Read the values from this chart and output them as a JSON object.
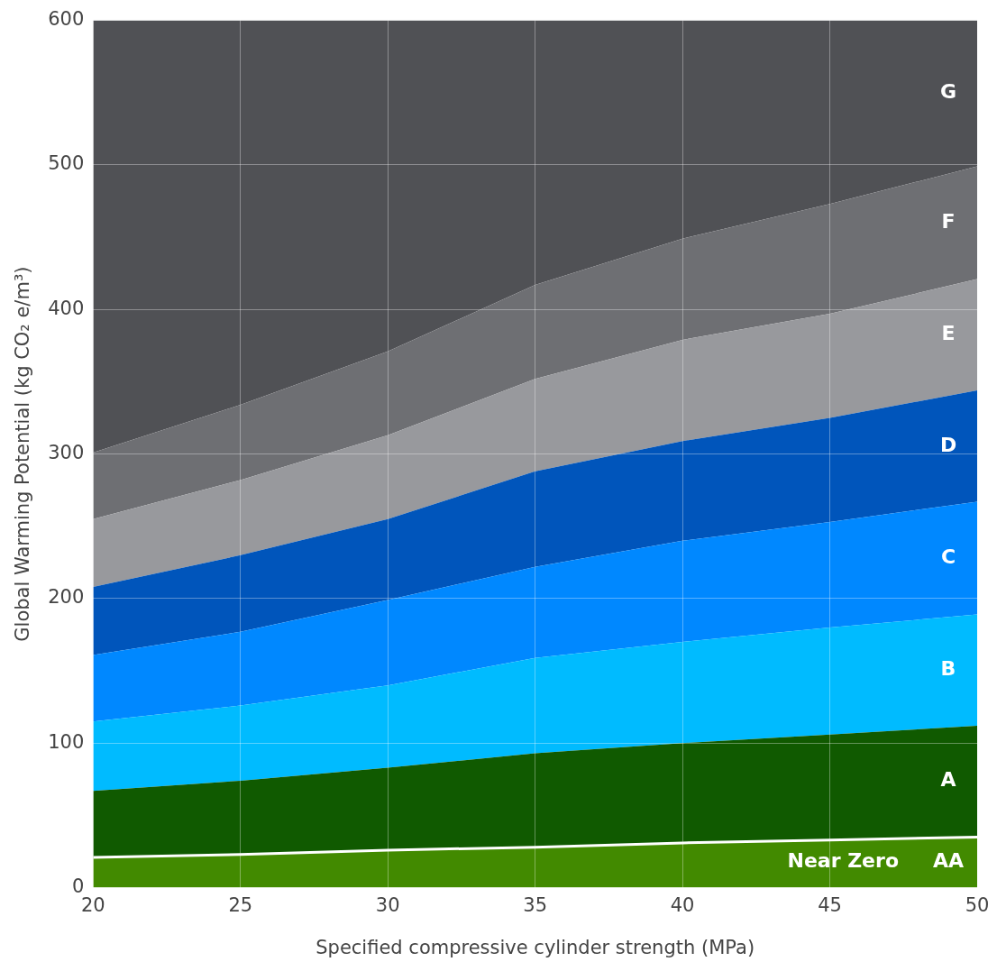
{
  "chart_data": {
    "type": "area",
    "stacked": true,
    "xlabel": "Specified compressive cylinder strength (MPa)",
    "ylabel": "Global Warming Potential (kg CO₂ e/m³)",
    "x": [
      20,
      25,
      30,
      35,
      40,
      45,
      50
    ],
    "xlim": [
      20,
      50
    ],
    "xticks": [
      20,
      25,
      30,
      35,
      40,
      45,
      50
    ],
    "ylim": [
      0,
      600
    ],
    "yticks": [
      0,
      100,
      200,
      300,
      400,
      500,
      600
    ],
    "grid": true,
    "legend": false,
    "annotations": [
      "Near Zero"
    ],
    "series": [
      {
        "name": "AA",
        "color": "#428a00",
        "values": [
          21,
          23,
          26,
          28,
          31,
          33,
          35
        ]
      },
      {
        "name": "A",
        "color": "#105a00",
        "values": [
          46,
          51,
          57,
          65,
          69,
          73,
          77
        ]
      },
      {
        "name": "B",
        "color": "#00bbff",
        "values": [
          48,
          52,
          57,
          66,
          70,
          74,
          77
        ]
      },
      {
        "name": "C",
        "color": "#0088ff",
        "values": [
          46,
          51,
          59,
          63,
          70,
          73,
          78
        ]
      },
      {
        "name": "D",
        "color": "#0055bb",
        "values": [
          47,
          53,
          56,
          66,
          69,
          72,
          77
        ]
      },
      {
        "name": "E",
        "color": "#98999d",
        "values": [
          47,
          52,
          58,
          64,
          70,
          72,
          77
        ]
      },
      {
        "name": "F",
        "color": "#6e6f73",
        "values": [
          46,
          52,
          58,
          65,
          70,
          76,
          78
        ]
      },
      {
        "name": "G",
        "color": "#505155",
        "values": [
          299,
          266,
          229,
          183,
          151,
          127,
          101
        ]
      }
    ]
  }
}
